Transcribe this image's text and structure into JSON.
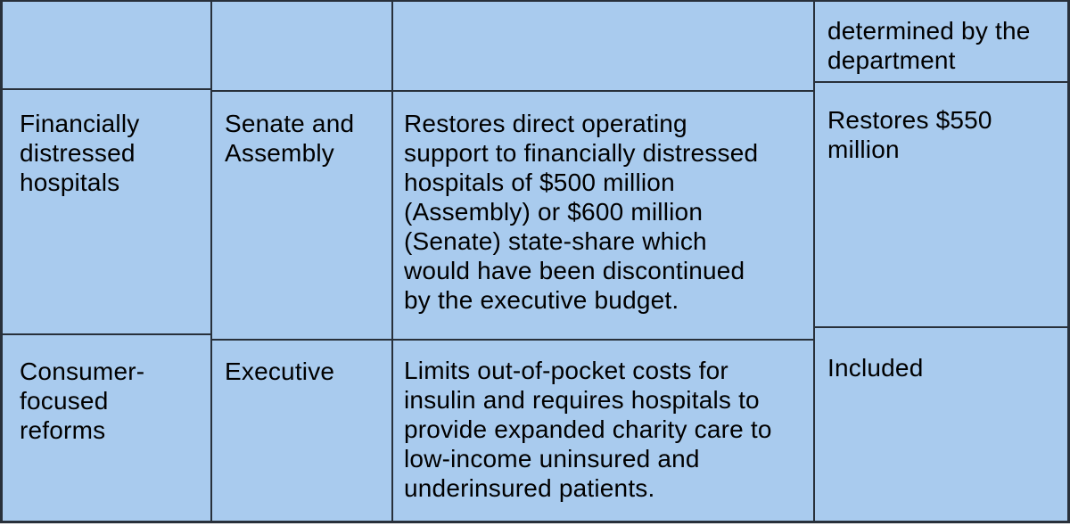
{
  "table": {
    "description": "Budget comparison table (cropped at top)",
    "colors": {
      "cell_background": "#a9cbee",
      "grid_border": "#28303a",
      "text": "#000000",
      "page_background": "#ffffff"
    },
    "rows": [
      {
        "cells": [
          "",
          "",
          "",
          "determined by the\ndepartment"
        ]
      },
      {
        "cells": [
          "Financially\ndistressed\nhospitals",
          "Senate and\nAssembly",
          "Restores direct operating\nsupport to financially distressed\nhospitals of $500 million\n(Assembly) or $600 million\n(Senate) state-share which\nwould have been discontinued\nby the executive budget.",
          "Restores $550\nmillion"
        ]
      },
      {
        "cells": [
          "Consumer-\nfocused\nreforms",
          "Executive",
          "Limits out-of-pocket costs for\ninsulin and requires hospitals to\nprovide expanded charity care to\nlow-income uninsured and\nunderinsured patients.",
          "Included"
        ]
      }
    ]
  }
}
